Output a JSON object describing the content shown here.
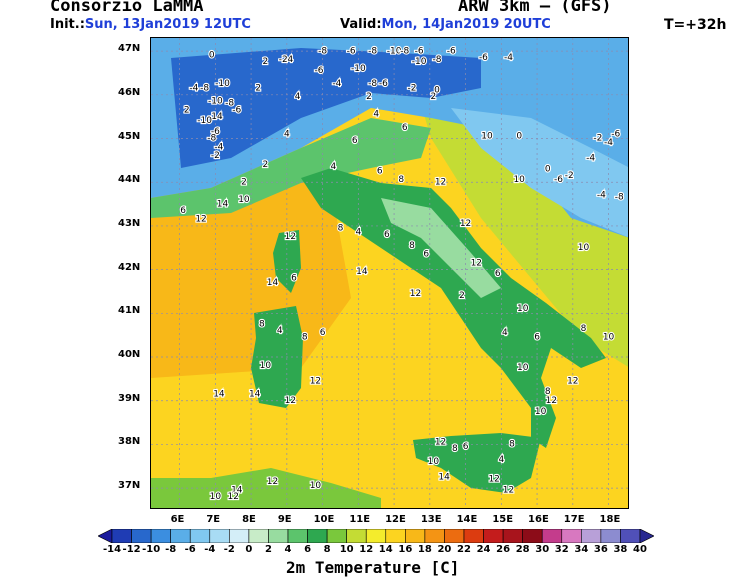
{
  "header": {
    "org": "Consorzio LaMMA",
    "init_label": "Init.:",
    "init_value": "Sun, 13Jan2019 12UTC",
    "model": "ARW 3km – (GFS)",
    "valid_label": "Valid:",
    "valid_value": "Mon, 14Jan2019 20UTC",
    "step": "T=+32h"
  },
  "axes": {
    "lat_labels": [
      "47N",
      "46N",
      "45N",
      "44N",
      "43N",
      "42N",
      "41N",
      "40N",
      "39N",
      "38N",
      "37N"
    ],
    "lon_labels": [
      "6E",
      "7E",
      "8E",
      "9E",
      "10E",
      "11E",
      "12E",
      "13E",
      "14E",
      "15E",
      "16E",
      "17E",
      "18E"
    ]
  },
  "colorbar": {
    "title": "2m Temperature [C]",
    "labels": [
      "-14",
      "-12",
      "-10",
      "-8",
      "-6",
      "-4",
      "-2",
      "0",
      "2",
      "4",
      "6",
      "8",
      "10",
      "12",
      "14",
      "16",
      "18",
      "20",
      "22",
      "24",
      "26",
      "28",
      "30",
      "32",
      "34",
      "36",
      "38",
      "40"
    ],
    "colors": [
      "#1a1a9c",
      "#1f3cb4",
      "#2868cc",
      "#3b8ee0",
      "#5aaee8",
      "#80c8f0",
      "#a8dcf4",
      "#d4eef8",
      "#c8ecc8",
      "#98dca0",
      "#5cc46c",
      "#2ea850",
      "#7ac83c",
      "#c4dc34",
      "#f4ec2c",
      "#fcd420",
      "#f8b818",
      "#f49414",
      "#ec6c10",
      "#dc3c10",
      "#c41c1c",
      "#a8141c",
      "#8c0c18",
      "#c43c8c",
      "#d878c0",
      "#b8a0d8",
      "#8c8cd0",
      "#5050b8",
      "#282890"
    ]
  },
  "map_data": {
    "labels_note": "",
    "temperature_labels": [
      {
        "v": "0",
        "lon": 6.9,
        "lat": 46.85
      },
      {
        "v": "2",
        "lon": 8.4,
        "lat": 46.7
      },
      {
        "v": "-2",
        "lon": 8.9,
        "lat": 46.75
      },
      {
        "v": "4",
        "lon": 9.1,
        "lat": 46.75
      },
      {
        "v": "-8",
        "lon": 10.0,
        "lat": 46.95
      },
      {
        "v": "-6",
        "lon": 10.8,
        "lat": 46.95
      },
      {
        "v": "-8",
        "lon": 11.4,
        "lat": 46.95
      },
      {
        "v": "-10",
        "lon": 12.0,
        "lat": 46.95
      },
      {
        "v": "-8",
        "lon": 12.3,
        "lat": 46.95
      },
      {
        "v": "-6",
        "lon": 12.7,
        "lat": 46.95
      },
      {
        "v": "-6",
        "lon": 13.6,
        "lat": 46.95
      },
      {
        "v": "-10",
        "lon": 12.7,
        "lat": 46.7
      },
      {
        "v": "-8",
        "lon": 13.2,
        "lat": 46.75
      },
      {
        "v": "-6",
        "lon": 14.5,
        "lat": 46.8
      },
      {
        "v": "-4",
        "lon": 15.2,
        "lat": 46.8
      },
      {
        "v": "-4",
        "lon": 6.4,
        "lat": 46.1
      },
      {
        "v": "-8",
        "lon": 6.7,
        "lat": 46.1
      },
      {
        "v": "-10",
        "lon": 7.2,
        "lat": 46.2
      },
      {
        "v": "-10",
        "lon": 7.0,
        "lat": 45.8
      },
      {
        "v": "-8",
        "lon": 7.4,
        "lat": 45.75
      },
      {
        "v": "-6",
        "lon": 7.6,
        "lat": 45.6
      },
      {
        "v": "-14",
        "lon": 7.0,
        "lat": 45.45
      },
      {
        "v": "-10",
        "lon": 6.7,
        "lat": 45.35
      },
      {
        "v": "-6",
        "lon": 7.0,
        "lat": 45.1
      },
      {
        "v": "-8",
        "lon": 6.9,
        "lat": 44.95
      },
      {
        "v": "-4",
        "lon": 7.1,
        "lat": 44.75
      },
      {
        "v": "-2",
        "lon": 7.0,
        "lat": 44.55
      },
      {
        "v": "2",
        "lon": 6.2,
        "lat": 45.6
      },
      {
        "v": "-6",
        "lon": 9.9,
        "lat": 46.5
      },
      {
        "v": "-4",
        "lon": 10.4,
        "lat": 46.2
      },
      {
        "v": "-10",
        "lon": 11.0,
        "lat": 46.55
      },
      {
        "v": "-8",
        "lon": 11.4,
        "lat": 46.2
      },
      {
        "v": "-6",
        "lon": 11.7,
        "lat": 46.2
      },
      {
        "v": "-2",
        "lon": 12.5,
        "lat": 46.1
      },
      {
        "v": "0",
        "lon": 13.2,
        "lat": 46.05
      },
      {
        "v": "2",
        "lon": 13.1,
        "lat": 45.9
      },
      {
        "v": "2",
        "lon": 8.2,
        "lat": 46.1
      },
      {
        "v": "4",
        "lon": 9.3,
        "lat": 45.9
      },
      {
        "v": "2",
        "lon": 11.3,
        "lat": 45.9
      },
      {
        "v": "4",
        "lon": 9.0,
        "lat": 45.05
      },
      {
        "v": "4",
        "lon": 11.5,
        "lat": 45.5
      },
      {
        "v": "6",
        "lon": 10.9,
        "lat": 44.9
      },
      {
        "v": "6",
        "lon": 12.3,
        "lat": 45.2
      },
      {
        "v": "4",
        "lon": 10.3,
        "lat": 44.3
      },
      {
        "v": "6",
        "lon": 11.6,
        "lat": 44.2
      },
      {
        "v": "8",
        "lon": 12.2,
        "lat": 44.0
      },
      {
        "v": "12",
        "lon": 13.3,
        "lat": 43.95
      },
      {
        "v": "2",
        "lon": 8.4,
        "lat": 44.35
      },
      {
        "v": "2",
        "lon": 7.8,
        "lat": 43.95
      },
      {
        "v": "6",
        "lon": 6.1,
        "lat": 43.3
      },
      {
        "v": "12",
        "lon": 6.6,
        "lat": 43.1
      },
      {
        "v": "14",
        "lon": 7.2,
        "lat": 43.45
      },
      {
        "v": "10",
        "lon": 7.8,
        "lat": 43.55
      },
      {
        "v": "10",
        "lon": 14.6,
        "lat": 45.0
      },
      {
        "v": "0",
        "lon": 15.5,
        "lat": 45.0
      },
      {
        "v": "10",
        "lon": 15.5,
        "lat": 44.0
      },
      {
        "v": "0",
        "lon": 16.3,
        "lat": 44.25
      },
      {
        "v": "-2",
        "lon": 16.9,
        "lat": 44.1
      },
      {
        "v": "-6",
        "lon": 16.6,
        "lat": 44.0
      },
      {
        "v": "-4",
        "lon": 17.5,
        "lat": 44.5
      },
      {
        "v": "-2",
        "lon": 17.7,
        "lat": 44.95
      },
      {
        "v": "-4",
        "lon": 18.0,
        "lat": 44.85
      },
      {
        "v": "-6",
        "lon": 18.2,
        "lat": 45.05
      },
      {
        "v": "-4",
        "lon": 17.8,
        "lat": 43.65
      },
      {
        "v": "-8",
        "lon": 18.3,
        "lat": 43.6
      },
      {
        "v": "12",
        "lon": 14.0,
        "lat": 43.0
      },
      {
        "v": "10",
        "lon": 17.3,
        "lat": 42.45
      },
      {
        "v": "12",
        "lon": 9.1,
        "lat": 42.7
      },
      {
        "v": "8",
        "lon": 10.5,
        "lat": 42.9
      },
      {
        "v": "4",
        "lon": 11.0,
        "lat": 42.8
      },
      {
        "v": "6",
        "lon": 11.8,
        "lat": 42.75
      },
      {
        "v": "8",
        "lon": 12.5,
        "lat": 42.5
      },
      {
        "v": "14",
        "lon": 11.1,
        "lat": 41.9
      },
      {
        "v": "6",
        "lon": 12.9,
        "lat": 42.3
      },
      {
        "v": "12",
        "lon": 14.3,
        "lat": 42.1
      },
      {
        "v": "6",
        "lon": 14.9,
        "lat": 41.85
      },
      {
        "v": "12",
        "lon": 12.6,
        "lat": 41.4
      },
      {
        "v": "2",
        "lon": 13.9,
        "lat": 41.35
      },
      {
        "v": "10",
        "lon": 15.6,
        "lat": 41.05
      },
      {
        "v": "14",
        "lon": 8.6,
        "lat": 41.65
      },
      {
        "v": "6",
        "lon": 9.2,
        "lat": 41.75
      },
      {
        "v": "8",
        "lon": 8.3,
        "lat": 40.7
      },
      {
        "v": "4",
        "lon": 8.8,
        "lat": 40.55
      },
      {
        "v": "8",
        "lon": 9.5,
        "lat": 40.4
      },
      {
        "v": "6",
        "lon": 10.0,
        "lat": 40.5
      },
      {
        "v": "10",
        "lon": 8.4,
        "lat": 39.75
      },
      {
        "v": "12",
        "lon": 9.8,
        "lat": 39.4
      },
      {
        "v": "12",
        "lon": 9.1,
        "lat": 38.95
      },
      {
        "v": "14",
        "lon": 8.1,
        "lat": 39.1
      },
      {
        "v": "14",
        "lon": 7.1,
        "lat": 39.1
      },
      {
        "v": "6",
        "lon": 16.0,
        "lat": 40.4
      },
      {
        "v": "8",
        "lon": 17.3,
        "lat": 40.6
      },
      {
        "v": "10",
        "lon": 18.0,
        "lat": 40.4
      },
      {
        "v": "4",
        "lon": 15.1,
        "lat": 40.5
      },
      {
        "v": "10",
        "lon": 15.6,
        "lat": 39.7
      },
      {
        "v": "12",
        "lon": 17.0,
        "lat": 39.4
      },
      {
        "v": "8",
        "lon": 16.3,
        "lat": 39.15
      },
      {
        "v": "12",
        "lon": 16.4,
        "lat": 38.95
      },
      {
        "v": "10",
        "lon": 16.1,
        "lat": 38.7
      },
      {
        "v": "12",
        "lon": 13.3,
        "lat": 38.0
      },
      {
        "v": "8",
        "lon": 13.7,
        "lat": 37.85
      },
      {
        "v": "6",
        "lon": 14.0,
        "lat": 37.9
      },
      {
        "v": "8",
        "lon": 15.3,
        "lat": 37.95
      },
      {
        "v": "4",
        "lon": 15.0,
        "lat": 37.6
      },
      {
        "v": "10",
        "lon": 13.1,
        "lat": 37.55
      },
      {
        "v": "14",
        "lon": 13.4,
        "lat": 37.2
      },
      {
        "v": "12",
        "lon": 14.8,
        "lat": 37.15
      },
      {
        "v": "12",
        "lon": 15.2,
        "lat": 36.9
      },
      {
        "v": "12",
        "lon": 8.6,
        "lat": 37.1
      },
      {
        "v": "10",
        "lon": 9.8,
        "lat": 37.0
      },
      {
        "v": "14",
        "lon": 7.6,
        "lat": 36.9
      },
      {
        "v": "10",
        "lon": 7.0,
        "lat": 36.75
      },
      {
        "v": "12",
        "lon": 7.5,
        "lat": 36.75
      }
    ]
  }
}
